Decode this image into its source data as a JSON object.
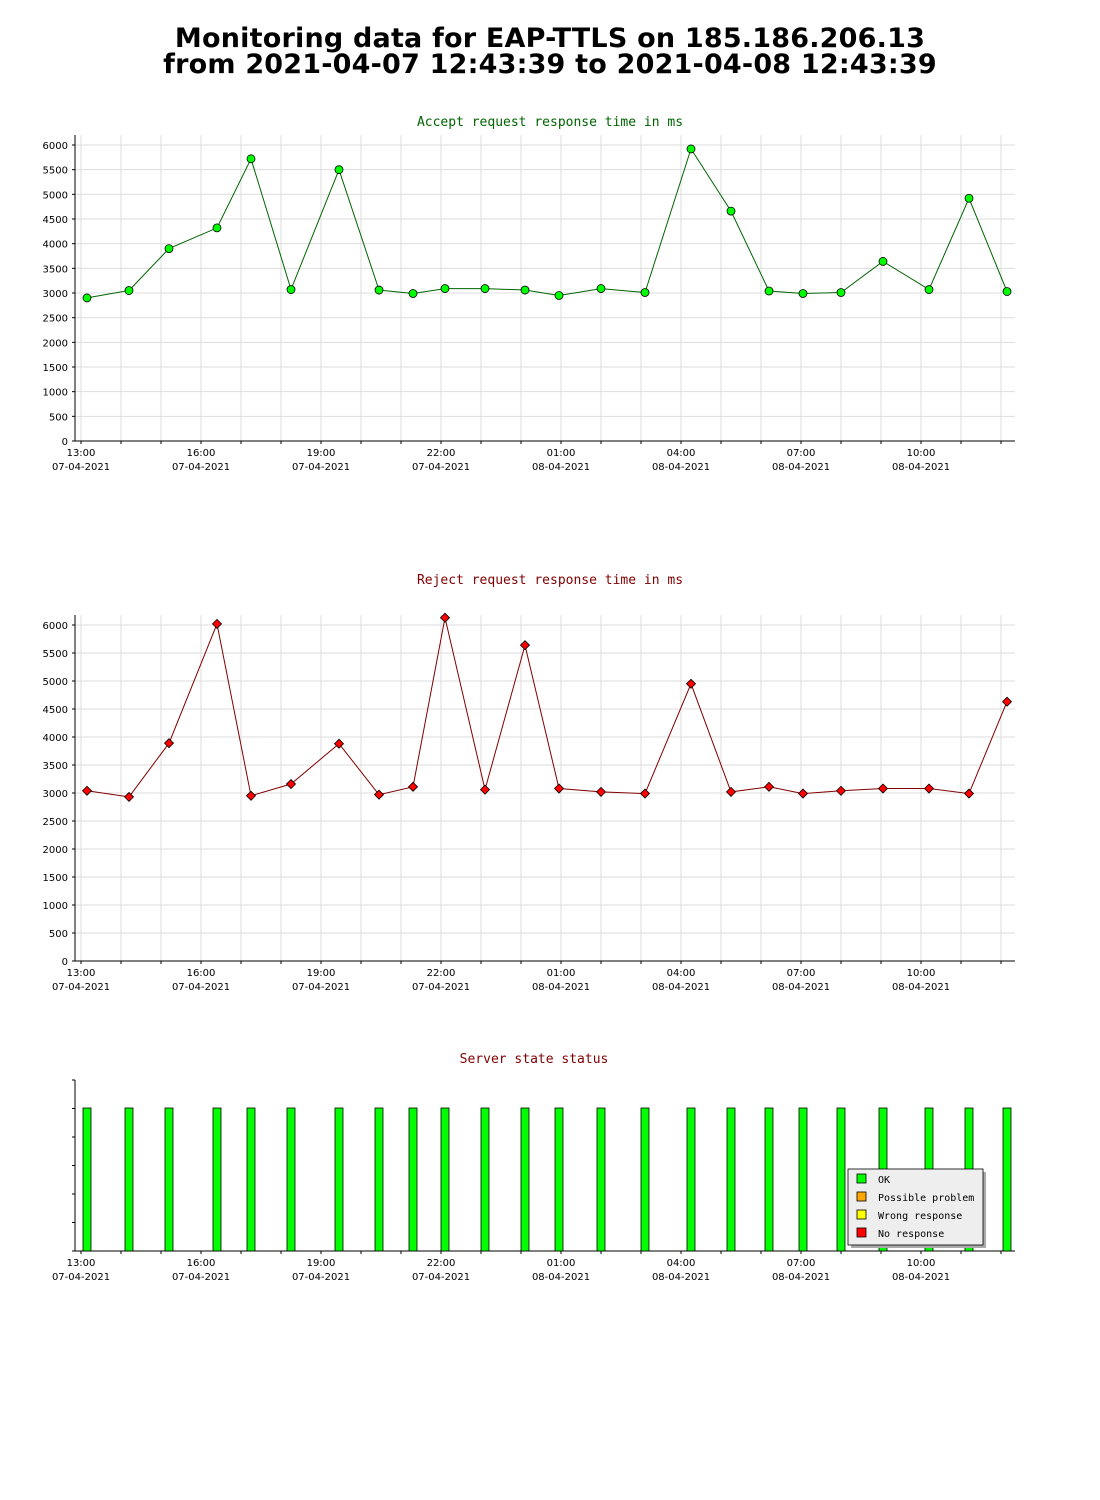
{
  "header": {
    "line1": "Monitoring data for EAP-TTLS on 185.186.206.13",
    "line2": "from 2021-04-07 12:43:39 to 2021-04-08 12:43:39"
  },
  "colors": {
    "accept_title": "#006400",
    "reject_title": "#800000",
    "status_title": "#800000",
    "accept_line": "#006400",
    "reject_line": "#800000",
    "ok": "#00ff00",
    "possible_problem": "#ffa500",
    "wrong_response": "#ffff00",
    "no_response": "#ff0000",
    "grid": "#dddddd"
  },
  "time_axis": {
    "ticks": [
      {
        "time": "13:00",
        "date": "07-04-2021",
        "hour": 13
      },
      {
        "time": "16:00",
        "date": "07-04-2021",
        "hour": 16
      },
      {
        "time": "19:00",
        "date": "07-04-2021",
        "hour": 19
      },
      {
        "time": "22:00",
        "date": "07-04-2021",
        "hour": 22
      },
      {
        "time": "01:00",
        "date": "08-04-2021",
        "hour": 25
      },
      {
        "time": "04:00",
        "date": "08-04-2021",
        "hour": 28
      },
      {
        "time": "07:00",
        "date": "08-04-2021",
        "hour": 31
      },
      {
        "time": "10:00",
        "date": "08-04-2021",
        "hour": 34
      }
    ]
  },
  "chart_data": [
    {
      "type": "line",
      "title": "Accept request response time in ms",
      "ylim": [
        0,
        6000
      ],
      "yticks": [
        0,
        500,
        1000,
        1500,
        2000,
        2500,
        3000,
        3500,
        4000,
        4500,
        5000,
        5500,
        6000
      ],
      "grid": true,
      "x_unit": "hours after 2021-04-07 00:00",
      "xlim": [
        12.85,
        36.35
      ],
      "series": [
        {
          "marker": "circle",
          "x": [
            13.15,
            14.2,
            15.2,
            16.4,
            17.25,
            18.25,
            19.45,
            20.45,
            21.3,
            22.1,
            23.1,
            24.1,
            24.95,
            26.0,
            27.1,
            28.25,
            29.25,
            30.2,
            31.05,
            32.0,
            33.05,
            34.2,
            35.2,
            36.15
          ],
          "values": [
            2900,
            3050,
            3900,
            4320,
            5720,
            3070,
            5500,
            3060,
            2990,
            3090,
            3090,
            3060,
            2950,
            3090,
            3010,
            5920,
            4660,
            3040,
            2990,
            3010,
            3640,
            3070,
            4920,
            3030
          ]
        }
      ]
    },
    {
      "type": "line",
      "title": "Reject request response time in ms",
      "ylim": [
        0,
        6000
      ],
      "yticks": [
        0,
        500,
        1000,
        1500,
        2000,
        2500,
        3000,
        3500,
        4000,
        4500,
        5000,
        5500,
        6000
      ],
      "grid": true,
      "x_unit": "hours after 2021-04-07 00:00",
      "xlim": [
        12.85,
        36.35
      ],
      "series": [
        {
          "marker": "diamond",
          "x": [
            13.15,
            14.2,
            15.2,
            16.4,
            17.25,
            18.25,
            19.45,
            20.45,
            21.3,
            22.1,
            23.1,
            24.1,
            24.95,
            26.0,
            27.1,
            28.25,
            29.25,
            30.2,
            31.05,
            32.0,
            33.05,
            34.2,
            35.2,
            36.15
          ],
          "values": [
            3040,
            2930,
            3890,
            6020,
            2950,
            3160,
            3880,
            2970,
            3110,
            6130,
            3060,
            5640,
            3080,
            3020,
            2990,
            4950,
            3020,
            3110,
            2990,
            3040,
            3080,
            3080,
            2990,
            4630
          ]
        }
      ]
    },
    {
      "type": "bar",
      "title": "Server state status",
      "x_unit": "hours after 2021-04-07 00:00",
      "xlim": [
        12.85,
        36.35
      ],
      "x": [
        13.15,
        14.2,
        15.2,
        16.4,
        17.25,
        18.25,
        19.45,
        20.45,
        21.3,
        22.1,
        23.1,
        24.1,
        24.95,
        26.0,
        27.1,
        28.25,
        29.25,
        30.2,
        31.05,
        32.0,
        33.05,
        34.2,
        35.2,
        36.15
      ],
      "states": [
        "OK",
        "OK",
        "OK",
        "OK",
        "OK",
        "OK",
        "OK",
        "OK",
        "OK",
        "OK",
        "OK",
        "OK",
        "OK",
        "OK",
        "OK",
        "OK",
        "OK",
        "OK",
        "OK",
        "OK",
        "OK",
        "OK",
        "OK",
        "OK"
      ],
      "legend": {
        "position": "bottom-right",
        "entries": [
          {
            "label": "OK",
            "color": "#00ff00"
          },
          {
            "label": "Possible problem",
            "color": "#ffa500"
          },
          {
            "label": "Wrong response",
            "color": "#ffff00"
          },
          {
            "label": "No response",
            "color": "#ff0000"
          }
        ]
      }
    }
  ]
}
